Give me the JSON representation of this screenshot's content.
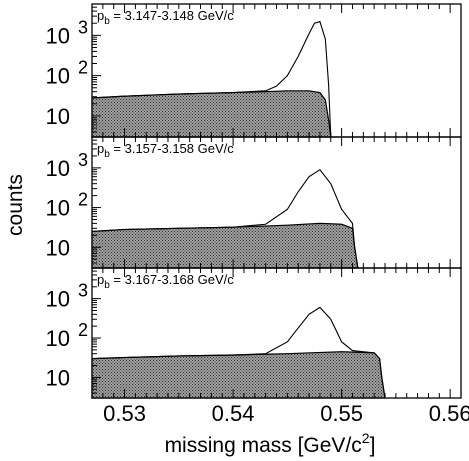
{
  "chart_data": {
    "type": "area",
    "xlabel": "missing mass [GeV/c",
    "xlabel_sup": "2",
    "xlabel_tail": "]",
    "ylabel": "counts",
    "xlim": [
      0.527,
      0.561
    ],
    "ylim": [
      3,
      6000
    ],
    "yscale": "log",
    "x_ticks": [
      0.53,
      0.54,
      0.55,
      0.56
    ],
    "x_tick_labels": [
      "0.53",
      "0.54",
      "0.55",
      "0.56"
    ],
    "y_tick_labels": [
      {
        "value": 1000,
        "base": "10",
        "exp": "3"
      },
      {
        "value": 100,
        "base": "10",
        "exp": "2"
      },
      {
        "value": 10,
        "base": "10",
        "exp": ""
      }
    ],
    "panels": [
      {
        "label_prefix": "p",
        "label_sub": "b",
        "label_text": " = 3.147-3.148 GeV/c",
        "shaded_series": {
          "x": [
            0.527,
            0.53,
            0.535,
            0.54,
            0.543,
            0.545,
            0.547,
            0.548,
            0.5485,
            0.5488,
            0.549
          ],
          "values": [
            28,
            31,
            35,
            38,
            40,
            42,
            42,
            38,
            25,
            8,
            3
          ]
        },
        "total_series": {
          "x": [
            0.527,
            0.53,
            0.535,
            0.54,
            0.543,
            0.544,
            0.545,
            0.546,
            0.547,
            0.5475,
            0.548,
            0.5485,
            0.5488,
            0.549
          ],
          "values": [
            28,
            31,
            35,
            38,
            42,
            55,
            100,
            300,
            1100,
            2000,
            2200,
            800,
            60,
            3
          ]
        }
      },
      {
        "label_prefix": "p",
        "label_sub": "b",
        "label_text": " = 3.157-3.158 GeV/c",
        "shaded_series": {
          "x": [
            0.527,
            0.53,
            0.535,
            0.54,
            0.545,
            0.548,
            0.55,
            0.551,
            0.5512,
            0.5515
          ],
          "values": [
            25,
            28,
            30,
            32,
            36,
            40,
            38,
            30,
            10,
            3
          ]
        },
        "total_series": {
          "x": [
            0.527,
            0.53,
            0.535,
            0.54,
            0.543,
            0.545,
            0.546,
            0.547,
            0.548,
            0.549,
            0.55,
            0.551,
            0.5512,
            0.5515
          ],
          "values": [
            25,
            28,
            30,
            32,
            38,
            90,
            250,
            600,
            900,
            400,
            90,
            40,
            10,
            3
          ]
        }
      },
      {
        "label_prefix": "p",
        "label_sub": "b",
        "label_text": " = 3.167-3.168 GeV/c",
        "shaded_series": {
          "x": [
            0.527,
            0.53,
            0.535,
            0.54,
            0.545,
            0.55,
            0.553,
            0.5535,
            0.5537,
            0.554
          ],
          "values": [
            30,
            32,
            35,
            37,
            40,
            45,
            42,
            30,
            10,
            3
          ]
        },
        "total_series": {
          "x": [
            0.527,
            0.53,
            0.535,
            0.54,
            0.543,
            0.545,
            0.546,
            0.547,
            0.548,
            0.549,
            0.55,
            0.551,
            0.553,
            0.5535,
            0.5537,
            0.554
          ],
          "values": [
            30,
            32,
            35,
            37,
            40,
            80,
            180,
            400,
            600,
            300,
            80,
            48,
            42,
            30,
            10,
            3
          ]
        }
      }
    ],
    "grid": false,
    "legend": "none"
  }
}
